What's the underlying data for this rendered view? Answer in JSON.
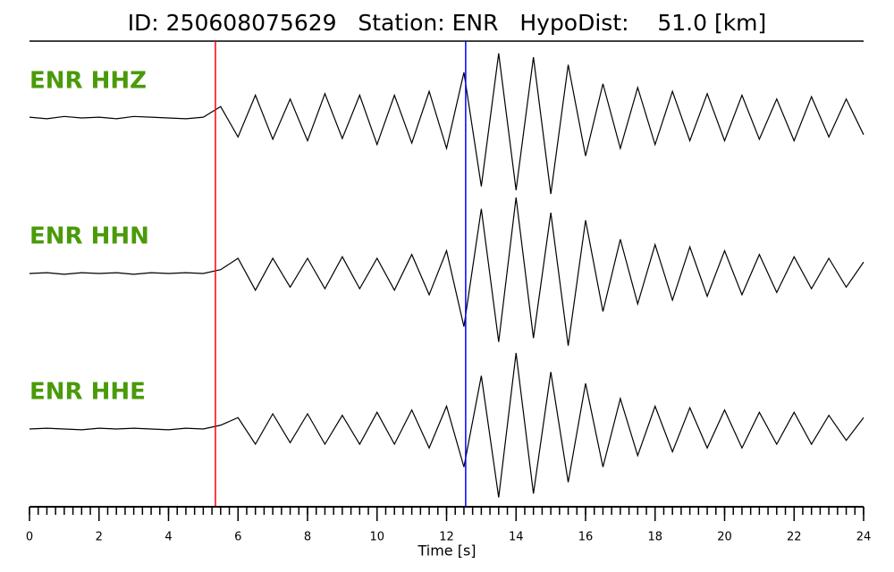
{
  "chart_data": {
    "type": "waveform",
    "title": "ID: 250608075629   Station: ENR   HypoDist:    51.0 [km]",
    "xlabel": "Time [s]",
    "xlim": [
      0,
      24
    ],
    "xticks": [
      0,
      2,
      4,
      6,
      8,
      10,
      12,
      14,
      16,
      18,
      20,
      22,
      24
    ],
    "minor_tick_step": 0.25,
    "ylim": [
      -1,
      1
    ],
    "label_color": "#4a9a0a",
    "x": [
      0,
      0.5,
      1,
      1.5,
      2,
      2.5,
      3,
      3.5,
      4,
      4.5,
      5,
      5.5,
      6,
      6.5,
      7,
      7.5,
      8,
      8.5,
      9,
      9.5,
      10,
      10.5,
      11,
      11.5,
      12,
      12.5,
      13,
      13.5,
      14,
      14.5,
      15,
      15.5,
      16,
      16.5,
      17,
      17.5,
      18,
      18.5,
      19,
      19.5,
      20,
      20.5,
      21,
      21.5,
      22,
      22.5,
      23,
      23.5,
      24
    ],
    "series": [
      {
        "name": "ENR HHZ",
        "color": "#000000",
        "values": [
          0.01,
          -0.01,
          0.02,
          0,
          0.01,
          -0.01,
          0.02,
          0.01,
          0,
          -0.01,
          0.01,
          0.15,
          -0.25,
          0.3,
          -0.28,
          0.25,
          -0.3,
          0.32,
          -0.27,
          0.3,
          -0.35,
          0.3,
          -0.33,
          0.35,
          -0.4,
          0.6,
          -0.9,
          0.85,
          -0.95,
          0.8,
          -1.0,
          0.7,
          -0.5,
          0.45,
          -0.4,
          0.4,
          -0.35,
          0.35,
          -0.3,
          0.32,
          -0.3,
          0.3,
          -0.28,
          0.25,
          -0.3,
          0.28,
          -0.25,
          0.25,
          -0.22
        ]
      },
      {
        "name": "ENR HHN",
        "color": "#000000",
        "values": [
          0,
          0.01,
          -0.01,
          0.01,
          0,
          0.01,
          -0.01,
          0.01,
          0,
          0.01,
          0,
          0.05,
          0.2,
          -0.22,
          0.2,
          -0.18,
          0.2,
          -0.2,
          0.22,
          -0.2,
          0.2,
          -0.22,
          0.25,
          -0.28,
          0.3,
          -0.7,
          0.85,
          -0.9,
          1.0,
          -0.85,
          0.8,
          -0.95,
          0.7,
          -0.5,
          0.45,
          -0.4,
          0.38,
          -0.35,
          0.35,
          -0.3,
          0.3,
          -0.28,
          0.25,
          -0.25,
          0.22,
          -0.2,
          0.2,
          -0.18,
          0.15
        ]
      },
      {
        "name": "ENR HHE",
        "color": "#000000",
        "values": [
          0,
          0.01,
          0,
          -0.01,
          0.01,
          0,
          0.01,
          0,
          -0.01,
          0.01,
          0,
          0.05,
          0.15,
          -0.2,
          0.2,
          -0.18,
          0.2,
          -0.2,
          0.18,
          -0.2,
          0.22,
          -0.2,
          0.25,
          -0.25,
          0.3,
          -0.5,
          0.7,
          -0.9,
          1.0,
          -0.85,
          0.75,
          -0.7,
          0.6,
          -0.5,
          0.4,
          -0.35,
          0.3,
          -0.3,
          0.28,
          -0.25,
          0.25,
          -0.25,
          0.22,
          -0.2,
          0.22,
          -0.2,
          0.18,
          -0.15,
          0.15
        ]
      }
    ],
    "markers": [
      {
        "time": 5.35,
        "color": "#ff0000"
      },
      {
        "time": 12.55,
        "color": "#0000ff"
      }
    ]
  }
}
